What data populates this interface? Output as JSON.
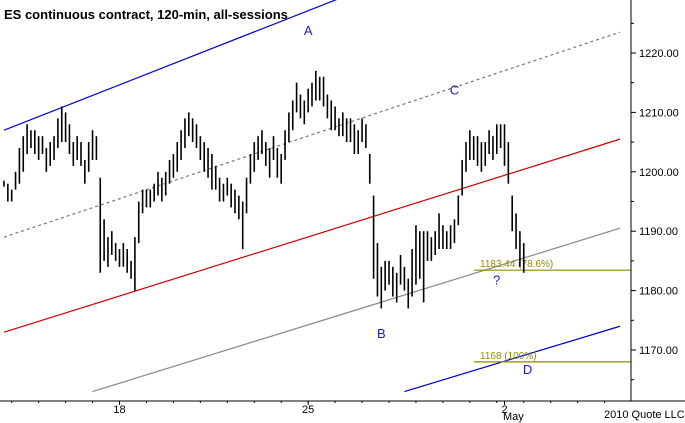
{
  "chart_data": {
    "type": "bar",
    "subtype": "ohlc",
    "title": "ES continuous contract, 120-min, all-sessions",
    "credit": "2010 Quote LLC",
    "y_ticks": [
      1170,
      1180,
      1190,
      1200,
      1210,
      1220
    ],
    "y_tick_labels": [
      "1170.00",
      "1180.00",
      "1190.00",
      "1200.00",
      "1210.00",
      "1220.00"
    ],
    "ylim": [
      1163.0,
      1233.0
    ],
    "x_ticks": [
      {
        "label": "18",
        "bar": 30
      },
      {
        "label": "25",
        "bar": 79
      },
      {
        "label": "2",
        "bar": 130
      }
    ],
    "month_label": "May",
    "grid": false,
    "bars": [
      [
        1198.5,
        1197.5
      ],
      [
        1198,
        1195
      ],
      [
        1197,
        1195
      ],
      [
        1200,
        1197
      ],
      [
        1204,
        1198
      ],
      [
        1206,
        1200
      ],
      [
        1208,
        1203
      ],
      [
        1207,
        1204
      ],
      [
        1207,
        1203
      ],
      [
        1206,
        1202
      ],
      [
        1206,
        1203
      ],
      [
        1204,
        1200
      ],
      [
        1205,
        1201
      ],
      [
        1206,
        1202
      ],
      [
        1209,
        1204
      ],
      [
        1211,
        1205
      ],
      [
        1210,
        1205
      ],
      [
        1208,
        1203
      ],
      [
        1205,
        1201
      ],
      [
        1206,
        1202
      ],
      [
        1205,
        1201
      ],
      [
        1202,
        1198
      ],
      [
        1205,
        1200
      ],
      [
        1207,
        1202
      ],
      [
        1206,
        1202
      ],
      [
        1199,
        1183
      ],
      [
        1192,
        1185
      ],
      [
        1189,
        1184
      ],
      [
        1190,
        1186
      ],
      [
        1188,
        1185
      ],
      [
        1187,
        1184
      ],
      [
        1188,
        1184
      ],
      [
        1187,
        1183
      ],
      [
        1185,
        1182
      ],
      [
        1189,
        1180
      ],
      [
        1195,
        1188
      ],
      [
        1197,
        1193
      ],
      [
        1197,
        1194
      ],
      [
        1197,
        1194
      ],
      [
        1198,
        1195
      ],
      [
        1200,
        1196
      ],
      [
        1199,
        1195
      ],
      [
        1200,
        1196
      ],
      [
        1202,
        1198
      ],
      [
        1203,
        1199
      ],
      [
        1205,
        1200
      ],
      [
        1207,
        1202
      ],
      [
        1209,
        1204
      ],
      [
        1210,
        1206
      ],
      [
        1209,
        1205
      ],
      [
        1208,
        1204
      ],
      [
        1206,
        1202
      ],
      [
        1205,
        1200
      ],
      [
        1204,
        1199
      ],
      [
        1203,
        1197
      ],
      [
        1201,
        1197
      ],
      [
        1199,
        1195
      ],
      [
        1198,
        1195
      ],
      [
        1199,
        1196
      ],
      [
        1198,
        1194
      ],
      [
        1197,
        1193
      ],
      [
        1196,
        1192
      ],
      [
        1195,
        1187
      ],
      [
        1199,
        1193
      ],
      [
        1203,
        1198
      ],
      [
        1205,
        1200
      ],
      [
        1206,
        1202
      ],
      [
        1207,
        1203
      ],
      [
        1205,
        1201
      ],
      [
        1204,
        1199
      ],
      [
        1206,
        1202
      ],
      [
        1204,
        1199
      ],
      [
        1203,
        1198
      ],
      [
        1207,
        1202
      ],
      [
        1210,
        1205
      ],
      [
        1212,
        1207
      ],
      [
        1215,
        1210
      ],
      [
        1213,
        1209
      ],
      [
        1212,
        1208
      ],
      [
        1214,
        1210
      ],
      [
        1215,
        1211
      ],
      [
        1217,
        1212
      ],
      [
        1216,
        1212
      ],
      [
        1216,
        1211
      ],
      [
        1213,
        1209
      ],
      [
        1212,
        1207
      ],
      [
        1211,
        1207
      ],
      [
        1209,
        1206
      ],
      [
        1210,
        1206
      ],
      [
        1209,
        1205
      ],
      [
        1209,
        1205
      ],
      [
        1208,
        1203
      ],
      [
        1207,
        1203
      ],
      [
        1209,
        1205
      ],
      [
        1208,
        1204
      ],
      [
        1203,
        1198
      ],
      [
        1196,
        1182
      ],
      [
        1188,
        1179
      ],
      [
        1184,
        1177
      ],
      [
        1185,
        1180
      ],
      [
        1185,
        1181
      ],
      [
        1184,
        1179
      ],
      [
        1183,
        1178
      ],
      [
        1186,
        1181
      ],
      [
        1184,
        1180
      ],
      [
        1182,
        1177
      ],
      [
        1187,
        1179
      ],
      [
        1191,
        1181
      ],
      [
        1190,
        1182
      ],
      [
        1190,
        1178
      ],
      [
        1190,
        1185
      ],
      [
        1189,
        1185
      ],
      [
        1190,
        1186
      ],
      [
        1193,
        1187
      ],
      [
        1191,
        1187
      ],
      [
        1190,
        1187
      ],
      [
        1191,
        1187
      ],
      [
        1192,
        1188
      ],
      [
        1196,
        1191
      ],
      [
        1202,
        1196
      ],
      [
        1205,
        1200
      ],
      [
        1207,
        1202
      ],
      [
        1206,
        1202
      ],
      [
        1206,
        1201
      ],
      [
        1205,
        1200
      ],
      [
        1205,
        1201
      ],
      [
        1207,
        1203
      ],
      [
        1206,
        1202
      ],
      [
        1208,
        1203
      ],
      [
        1208,
        1204
      ],
      [
        1208,
        1201
      ],
      [
        1205,
        1198
      ],
      [
        1196,
        1190
      ],
      [
        1193,
        1187
      ],
      [
        1190,
        1184
      ],
      [
        1188,
        1183
      ]
    ],
    "annotations": [
      {
        "text": "A",
        "bar": 79,
        "price": 1223
      },
      {
        "text": "B",
        "bar": 98,
        "price": 1172
      },
      {
        "text": "C",
        "bar": 117,
        "price": 1213
      },
      {
        "text": "?",
        "bar": 128,
        "price": 1181
      },
      {
        "text": "D",
        "bar": 136,
        "price": 1166
      }
    ],
    "levels": [
      {
        "label": "1183.44 (78.6%)",
        "value": 1183.44,
        "color": "#8b8b00"
      },
      {
        "label": "1168 (100%)",
        "value": 1168,
        "color": "#8b8b00"
      }
    ],
    "channel_lines": [
      {
        "name": "upper channel",
        "color": "#0000cc",
        "style": "solid",
        "start": {
          "bar": 0,
          "price": 1207
        },
        "end": {
          "bar": 106,
          "price": 1234
        }
      },
      {
        "name": "upper median",
        "color": "#777777",
        "style": "dashed",
        "start": {
          "bar": 0,
          "price": 1189
        },
        "end": {
          "bar": 160,
          "price": 1223.5
        }
      },
      {
        "name": "median",
        "color": "#cc0000",
        "style": "solid",
        "start": {
          "bar": 0,
          "price": 1173
        },
        "end": {
          "bar": 160,
          "price": 1205.5
        }
      },
      {
        "name": "lower median",
        "color": "#888888",
        "style": "solid",
        "start": {
          "bar": 23,
          "price": 1163
        },
        "end": {
          "bar": 160,
          "price": 1190.5
        }
      },
      {
        "name": "lower channel",
        "color": "#0000cc",
        "style": "solid",
        "start": {
          "bar": 104,
          "price": 1163
        },
        "end": {
          "bar": 160,
          "price": 1174
        }
      }
    ]
  }
}
